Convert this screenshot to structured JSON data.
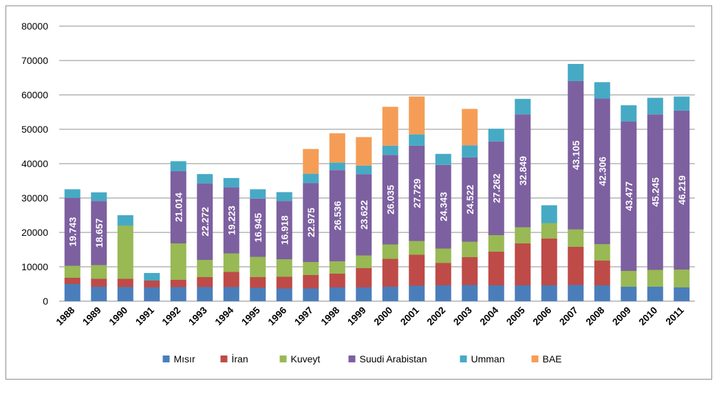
{
  "chart_data": {
    "type": "bar",
    "stacked": true,
    "title": "",
    "xlabel": "",
    "ylabel": "",
    "ylim": [
      0,
      80000
    ],
    "yticks": [
      0,
      10000,
      20000,
      30000,
      40000,
      50000,
      60000,
      70000,
      80000
    ],
    "grid": true,
    "legend_position": "bottom",
    "categories": [
      "1988",
      "1989",
      "1990",
      "1991",
      "1992",
      "1993",
      "1994",
      "1995",
      "1996",
      "1997",
      "1998",
      "1999",
      "2000",
      "2001",
      "2002",
      "2003",
      "2004",
      "2005",
      "2006",
      "2007",
      "2008",
      "2009",
      "2010",
      "2011"
    ],
    "series": [
      {
        "name": "Mısır",
        "color": "#4a7ebb",
        "values": [
          5000,
          4200,
          4100,
          4000,
          4100,
          4100,
          4100,
          3900,
          3700,
          3700,
          4000,
          4000,
          4200,
          4500,
          4600,
          4700,
          4600,
          4600,
          4600,
          4700,
          4600,
          4200,
          4200,
          4000
        ]
      },
      {
        "name": "İran",
        "color": "#be4b48",
        "values": [
          1800,
          2300,
          2400,
          2000,
          2100,
          2900,
          4400,
          3100,
          3400,
          3900,
          4000,
          5600,
          8100,
          9000,
          6500,
          8100,
          9800,
          12200,
          13600,
          11100,
          7200,
          0,
          0,
          0
        ]
      },
      {
        "name": "Kuveyt",
        "color": "#98b954",
        "values": [
          3500,
          4000,
          15500,
          0,
          10600,
          5000,
          5400,
          5900,
          5100,
          3800,
          3600,
          3700,
          4200,
          4000,
          4200,
          4500,
          4800,
          4700,
          4500,
          5100,
          4800,
          4600,
          4900,
          5200
        ]
      },
      {
        "name": "Suudi Arabistan",
        "color": "#7d60a0",
        "values": [
          19743,
          18657,
          0,
          0,
          21014,
          22272,
          19223,
          16945,
          16918,
          22975,
          26536,
          23622,
          26035,
          27729,
          24343,
          24522,
          27262,
          32849,
          0,
          43105,
          42306,
          43477,
          45245,
          46219
        ]
      },
      {
        "name": "Umman",
        "color": "#46aac5",
        "values": [
          2500,
          2500,
          3000,
          2200,
          2900,
          2700,
          2700,
          2700,
          2600,
          2700,
          2200,
          2500,
          2700,
          3300,
          3200,
          3500,
          3700,
          4500,
          5200,
          5000,
          4800,
          4700,
          4800,
          4100
        ]
      },
      {
        "name": "BAE",
        "color": "#f59d56",
        "values": [
          0,
          0,
          0,
          0,
          0,
          0,
          0,
          0,
          0,
          7200,
          8500,
          8300,
          11300,
          11000,
          0,
          10600,
          0,
          0,
          0,
          0,
          0,
          0,
          0,
          0
        ]
      }
    ],
    "data_labels": {
      "series": "Suudi Arabistan",
      "labels": [
        "19.743",
        "18.657",
        "0",
        "0",
        "21.014",
        "22.272",
        "19.223",
        "16.945",
        "16.918",
        "22.975",
        "26.536",
        "23.622",
        "26.035",
        "27.729",
        "24.343",
        "24.522",
        "27.262",
        "32.849",
        "0",
        "43.105",
        "42.306",
        "43.477",
        "45.245",
        "46.219"
      ]
    }
  }
}
